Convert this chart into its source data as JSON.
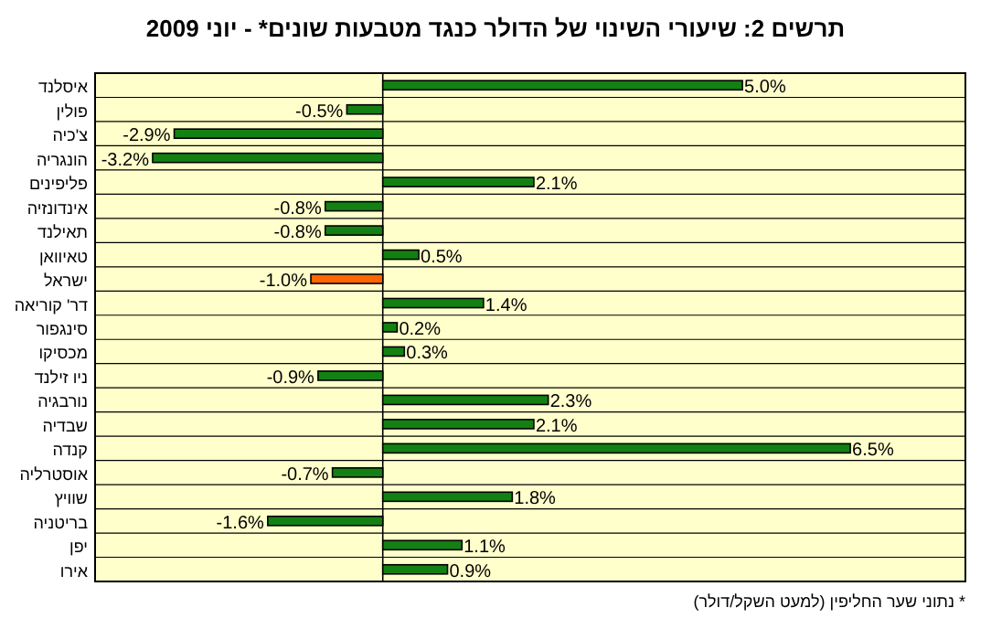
{
  "chart_data": {
    "type": "bar",
    "orientation": "horizontal",
    "title": "תרשים 2: שיעורי השינוי של הדולר כנגד מטבעות שונים* - יוני 2009",
    "categories": [
      "איסלנד",
      "פולין",
      "צ'כיה",
      "הונגריה",
      "פליפינים",
      "אינדונזיה",
      "תאילנד",
      "טאיוואן",
      "ישראל",
      "דר' קוריאה",
      "סינגפור",
      "מכסיקו",
      "ניו זילנד",
      "נורבגיה",
      "שבדיה",
      "קנדה",
      "אוסטרליה",
      "שוויץ",
      "בריטניה",
      "יפן",
      "אירו"
    ],
    "values": [
      5.0,
      -0.5,
      -2.9,
      -3.2,
      2.1,
      -0.8,
      -0.8,
      0.5,
      -1.0,
      1.4,
      0.2,
      0.3,
      -0.9,
      2.3,
      2.1,
      6.5,
      -0.7,
      1.8,
      -1.6,
      1.1,
      0.9
    ],
    "value_labels": [
      "5.0%",
      "-0.5%",
      "-2.9%",
      "-3.2%",
      "2.1%",
      "-0.8%",
      "-0.8%",
      "0.5%",
      "-1.0%",
      "1.4%",
      "0.2%",
      "0.3%",
      "-0.9%",
      "2.3%",
      "2.1%",
      "6.5%",
      "-0.7%",
      "1.8%",
      "-1.6%",
      "1.1%",
      "0.9%"
    ],
    "colors": [
      "#138013",
      "#138013",
      "#138013",
      "#138013",
      "#138013",
      "#138013",
      "#138013",
      "#138013",
      "#ff6600",
      "#138013",
      "#138013",
      "#138013",
      "#138013",
      "#138013",
      "#138013",
      "#138013",
      "#138013",
      "#138013",
      "#138013",
      "#138013",
      "#138013"
    ],
    "xlim": [
      -4,
      8.1
    ],
    "tick_labels": "y",
    "annotations": [
      "* נתוני שער החליפין (למעט השקל/דולר)"
    ]
  }
}
